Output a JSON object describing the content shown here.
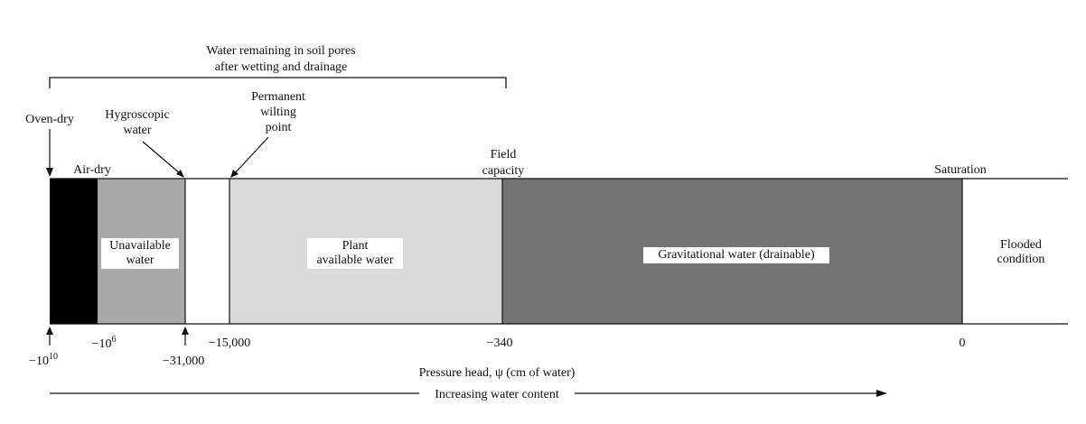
{
  "top_bracket": {
    "line1": "Water remaining in soil pores",
    "line2": "after wetting and drainage"
  },
  "markers": {
    "oven_dry": "Oven-dry",
    "hygroscopic_line1": "Hygroscopic",
    "hygroscopic_line2": "water",
    "pwp_line1": "Permanent",
    "pwp_line2": "wilting",
    "pwp_line3": "point",
    "field_capacity_line1": "Field",
    "field_capacity_line2": "capacity",
    "air_dry": "Air-dry",
    "saturation": "Saturation"
  },
  "zones": {
    "unavailable_line1": "Unavailable",
    "unavailable_line2": "water",
    "plant_available_line1": "Plant",
    "plant_available_line2": "available water",
    "gravitational": "Gravitational water (drainable)",
    "flooded_line1": "Flooded",
    "flooded_line2": "condition"
  },
  "ticks": {
    "t1_base": "−10",
    "t1_exp": "10",
    "t2_base": "−10",
    "t2_exp": "6",
    "t3": "−31,000",
    "t4": "−15,000",
    "t5": "−340",
    "t6": "0"
  },
  "axis_title": "Pressure head, ψ (cm of water)",
  "direction_label": "Increasing water content",
  "colors": {
    "oven_dry_fill": "#000000",
    "unavailable_fill": "#a9a9a9",
    "gap_fill": "#ffffff",
    "plant_available_fill": "#d9d9d9",
    "gravitational_fill": "#747474"
  }
}
